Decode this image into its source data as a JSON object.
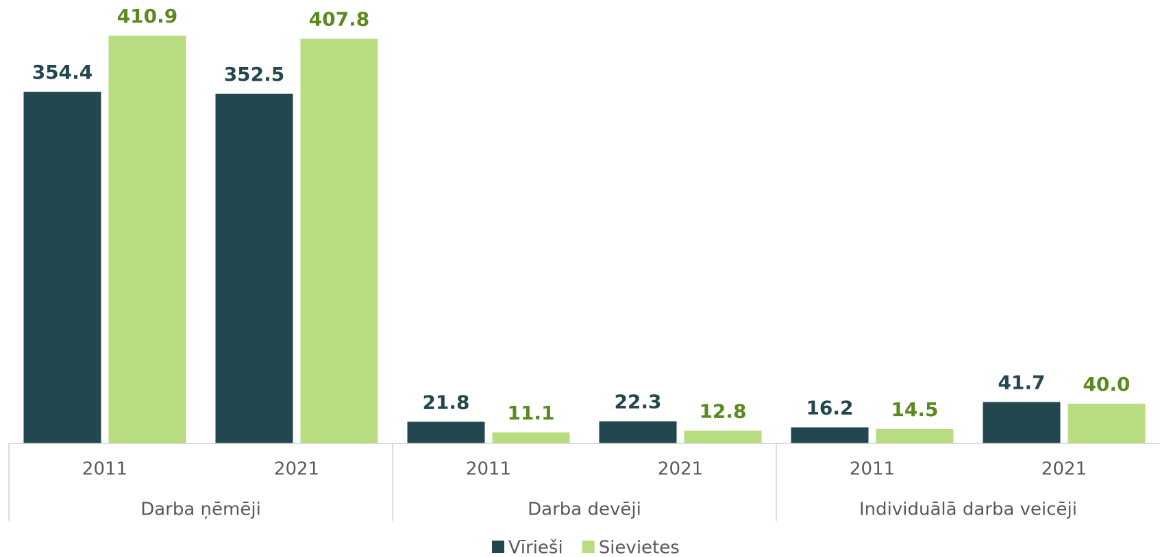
{
  "chart_data": {
    "type": "bar",
    "groups": [
      "Darba ņēmēji",
      "Darba devēji",
      "Individuālā darba veicēji"
    ],
    "categories": [
      "2011",
      "2021",
      "2011",
      "2021",
      "2011",
      "2021"
    ],
    "series": [
      {
        "name": "Vīrieši",
        "color": "#23474f",
        "label_color": "#23474f",
        "values": [
          354.4,
          352.5,
          21.8,
          22.3,
          16.2,
          41.7
        ]
      },
      {
        "name": "Sievietes",
        "color": "#b8dc80",
        "label_color": "#5a8a1e",
        "values": [
          410.9,
          407.8,
          11.1,
          12.8,
          14.5,
          40.0
        ],
        "value_labels": [
          "410.9",
          "407.8",
          "11.1",
          "12.8",
          "14.5",
          "40.0"
        ]
      }
    ]
  }
}
